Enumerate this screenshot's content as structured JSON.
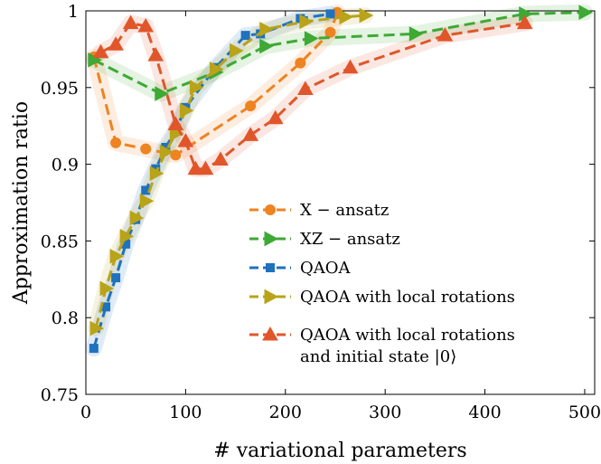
{
  "chart_data": {
    "type": "line",
    "title": "",
    "xlabel": "# variational parameters",
    "ylabel": "Approximation ratio",
    "xlim": [
      0,
      510
    ],
    "ylim": [
      0.75,
      1.0
    ],
    "xticks": [
      "0",
      "100",
      "200",
      "300",
      "400",
      "500"
    ],
    "yticks": [
      "0.75",
      "0.8",
      "0.85",
      "0.9",
      "0.95",
      "1"
    ],
    "xtick_values": [
      0,
      100,
      200,
      300,
      400,
      500
    ],
    "ytick_values": [
      0.75,
      0.8,
      0.85,
      0.9,
      0.95,
      1.0
    ],
    "grid": false,
    "legend_position": "lower-right",
    "series": [
      {
        "name": "X − ansatz",
        "color": "#EE8322",
        "marker": "circle",
        "x": [
          8,
          30,
          60,
          90,
          165,
          215,
          245,
          252
        ],
        "y": [
          0.97,
          0.914,
          0.91,
          0.906,
          0.938,
          0.966,
          0.986,
          0.999
        ]
      },
      {
        "name": "XZ − ansatz",
        "color": "#3EA935",
        "marker": "triangle-right",
        "x": [
          8,
          75,
          130,
          180,
          225,
          330,
          440,
          500
        ],
        "y": [
          0.968,
          0.946,
          0.96,
          0.977,
          0.982,
          0.985,
          0.998,
          0.999
        ]
      },
      {
        "name": "QAOA",
        "color": "#1E72BE",
        "marker": "square",
        "x": [
          8,
          20,
          30,
          40,
          50,
          60,
          70,
          80,
          90,
          100,
          130,
          160,
          175,
          215,
          245
        ],
        "y": [
          0.78,
          0.807,
          0.826,
          0.848,
          0.864,
          0.883,
          0.897,
          0.911,
          0.922,
          0.937,
          0.963,
          0.984,
          0.985,
          0.995,
          0.998
        ]
      },
      {
        "name": "QAOA with local rotations",
        "color": "#B8A319",
        "marker": "triangle-right",
        "x": [
          10,
          20,
          30,
          40,
          50,
          60,
          70,
          80,
          90,
          100,
          110,
          130,
          150,
          180,
          220,
          260,
          280
        ],
        "y": [
          0.793,
          0.819,
          0.84,
          0.853,
          0.865,
          0.876,
          0.894,
          0.908,
          0.92,
          0.935,
          0.95,
          0.962,
          0.974,
          0.988,
          0.993,
          0.996,
          0.997
        ]
      },
      {
        "name": "QAOA with local rotations and initial state |0⟩",
        "color": "#E0562A",
        "marker": "triangle-up",
        "x": [
          15,
          30,
          45,
          60,
          70,
          90,
          100,
          110,
          120,
          135,
          165,
          190,
          220,
          265,
          360,
          440
        ],
        "y": [
          0.973,
          0.978,
          0.992,
          0.99,
          0.971,
          0.926,
          0.915,
          0.897,
          0.897,
          0.903,
          0.919,
          0.93,
          0.949,
          0.963,
          0.984,
          0.992
        ]
      }
    ]
  }
}
